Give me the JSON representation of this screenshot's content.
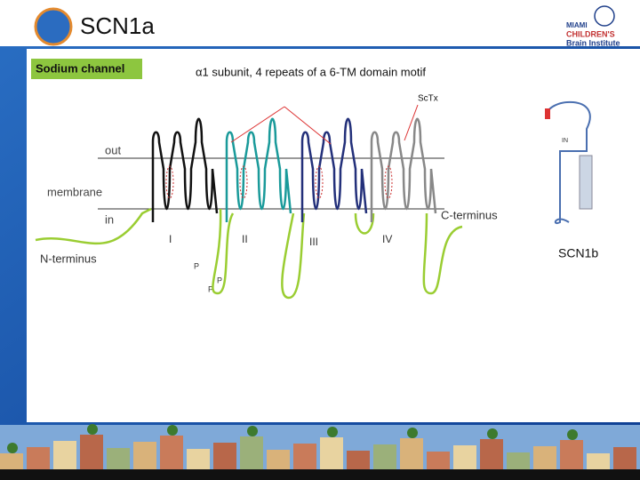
{
  "header": {
    "title": "SCN1a",
    "logo": {
      "line1": "MIAMI",
      "line2": "CHILDREN'S",
      "line3": "Brain Institute"
    }
  },
  "diagram": {
    "title": "Sodium channel",
    "subtitle": "α1 subunit, 4 repeats of a 6-TM domain motif",
    "toxin": "ScTx",
    "regions": {
      "out": "out",
      "membrane": "membrane",
      "in": "in"
    },
    "termini": {
      "c": "C-terminus",
      "n": "N-terminus"
    },
    "domains": [
      "I",
      "II",
      "III",
      "IV"
    ],
    "pore_labels": [
      "P",
      "P",
      "P"
    ]
  },
  "inset": {
    "label": "SCN1b",
    "in": "IN"
  }
}
